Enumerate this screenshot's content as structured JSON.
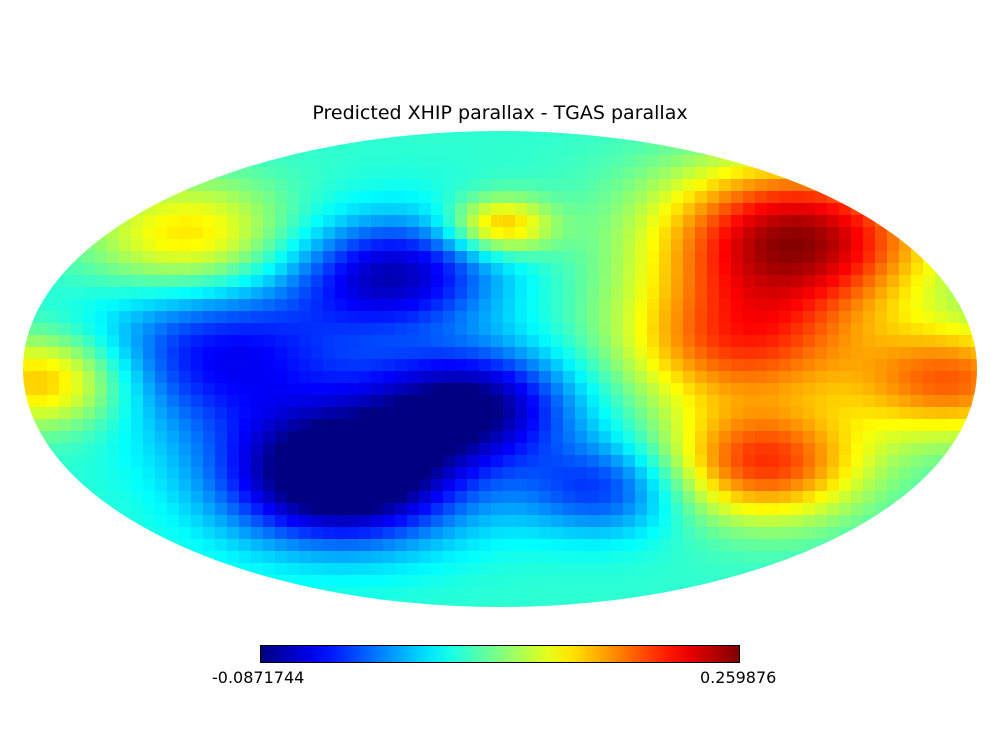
{
  "chart_data": {
    "type": "heatmap",
    "projection": "mollweide",
    "title": "Predicted XHIP parallax - TGAS parallax",
    "colormap": "jet",
    "colorbar": {
      "min_label": "-0.0871744",
      "max_label": "0.259876",
      "min": -0.0871744,
      "max": 0.259876
    },
    "grid": false
  }
}
